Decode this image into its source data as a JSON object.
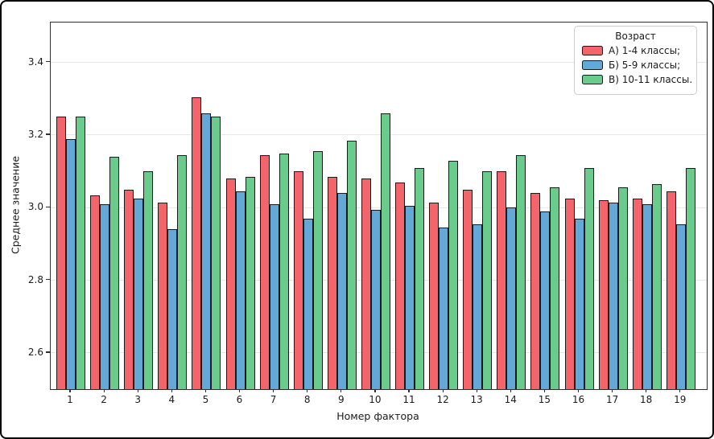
{
  "chart_data": {
    "type": "bar",
    "title": "",
    "xlabel": "Номер фактора",
    "ylabel": "Среднее значение",
    "legend_title": "Возраст",
    "legend_position": "top-right",
    "grid": "horizontal-only",
    "background_color": "#ffffff",
    "edge_color": "#1a1a1a",
    "grid_color": "#e7e7e7",
    "ylim": [
      2.5,
      3.51
    ],
    "yticks": [
      2.6,
      2.8,
      3.0,
      3.2,
      3.4
    ],
    "ytick_labels": [
      "2.6",
      "2.8",
      "3.0",
      "3.2",
      "3.4"
    ],
    "categories": [
      "1",
      "2",
      "3",
      "4",
      "5",
      "6",
      "7",
      "8",
      "9",
      "10",
      "11",
      "12",
      "13",
      "14",
      "15",
      "16",
      "17",
      "18",
      "19"
    ],
    "series": [
      {
        "name": "А) 1-4 классы;",
        "color": "#f4646b",
        "values": [
          3.25,
          3.035,
          3.05,
          3.015,
          3.305,
          3.08,
          3.145,
          3.1,
          3.085,
          3.08,
          3.07,
          3.015,
          3.05,
          3.1,
          3.04,
          3.025,
          3.02,
          3.025,
          3.045
        ]
      },
      {
        "name": "Б) 5-9 классы;",
        "color": "#63a8d7",
        "values": [
          3.19,
          3.01,
          3.025,
          2.94,
          3.26,
          3.045,
          3.01,
          2.97,
          3.04,
          2.995,
          3.005,
          2.945,
          2.955,
          3.0,
          2.99,
          2.97,
          3.015,
          3.01,
          2.955
        ]
      },
      {
        "name": "В) 10-11 классы.",
        "color": "#69cc8d",
        "values": [
          3.25,
          3.14,
          3.1,
          3.145,
          3.25,
          3.085,
          3.15,
          3.155,
          3.185,
          3.26,
          3.11,
          3.13,
          3.1,
          3.145,
          3.055,
          3.11,
          3.055,
          3.065,
          3.11
        ]
      }
    ]
  }
}
